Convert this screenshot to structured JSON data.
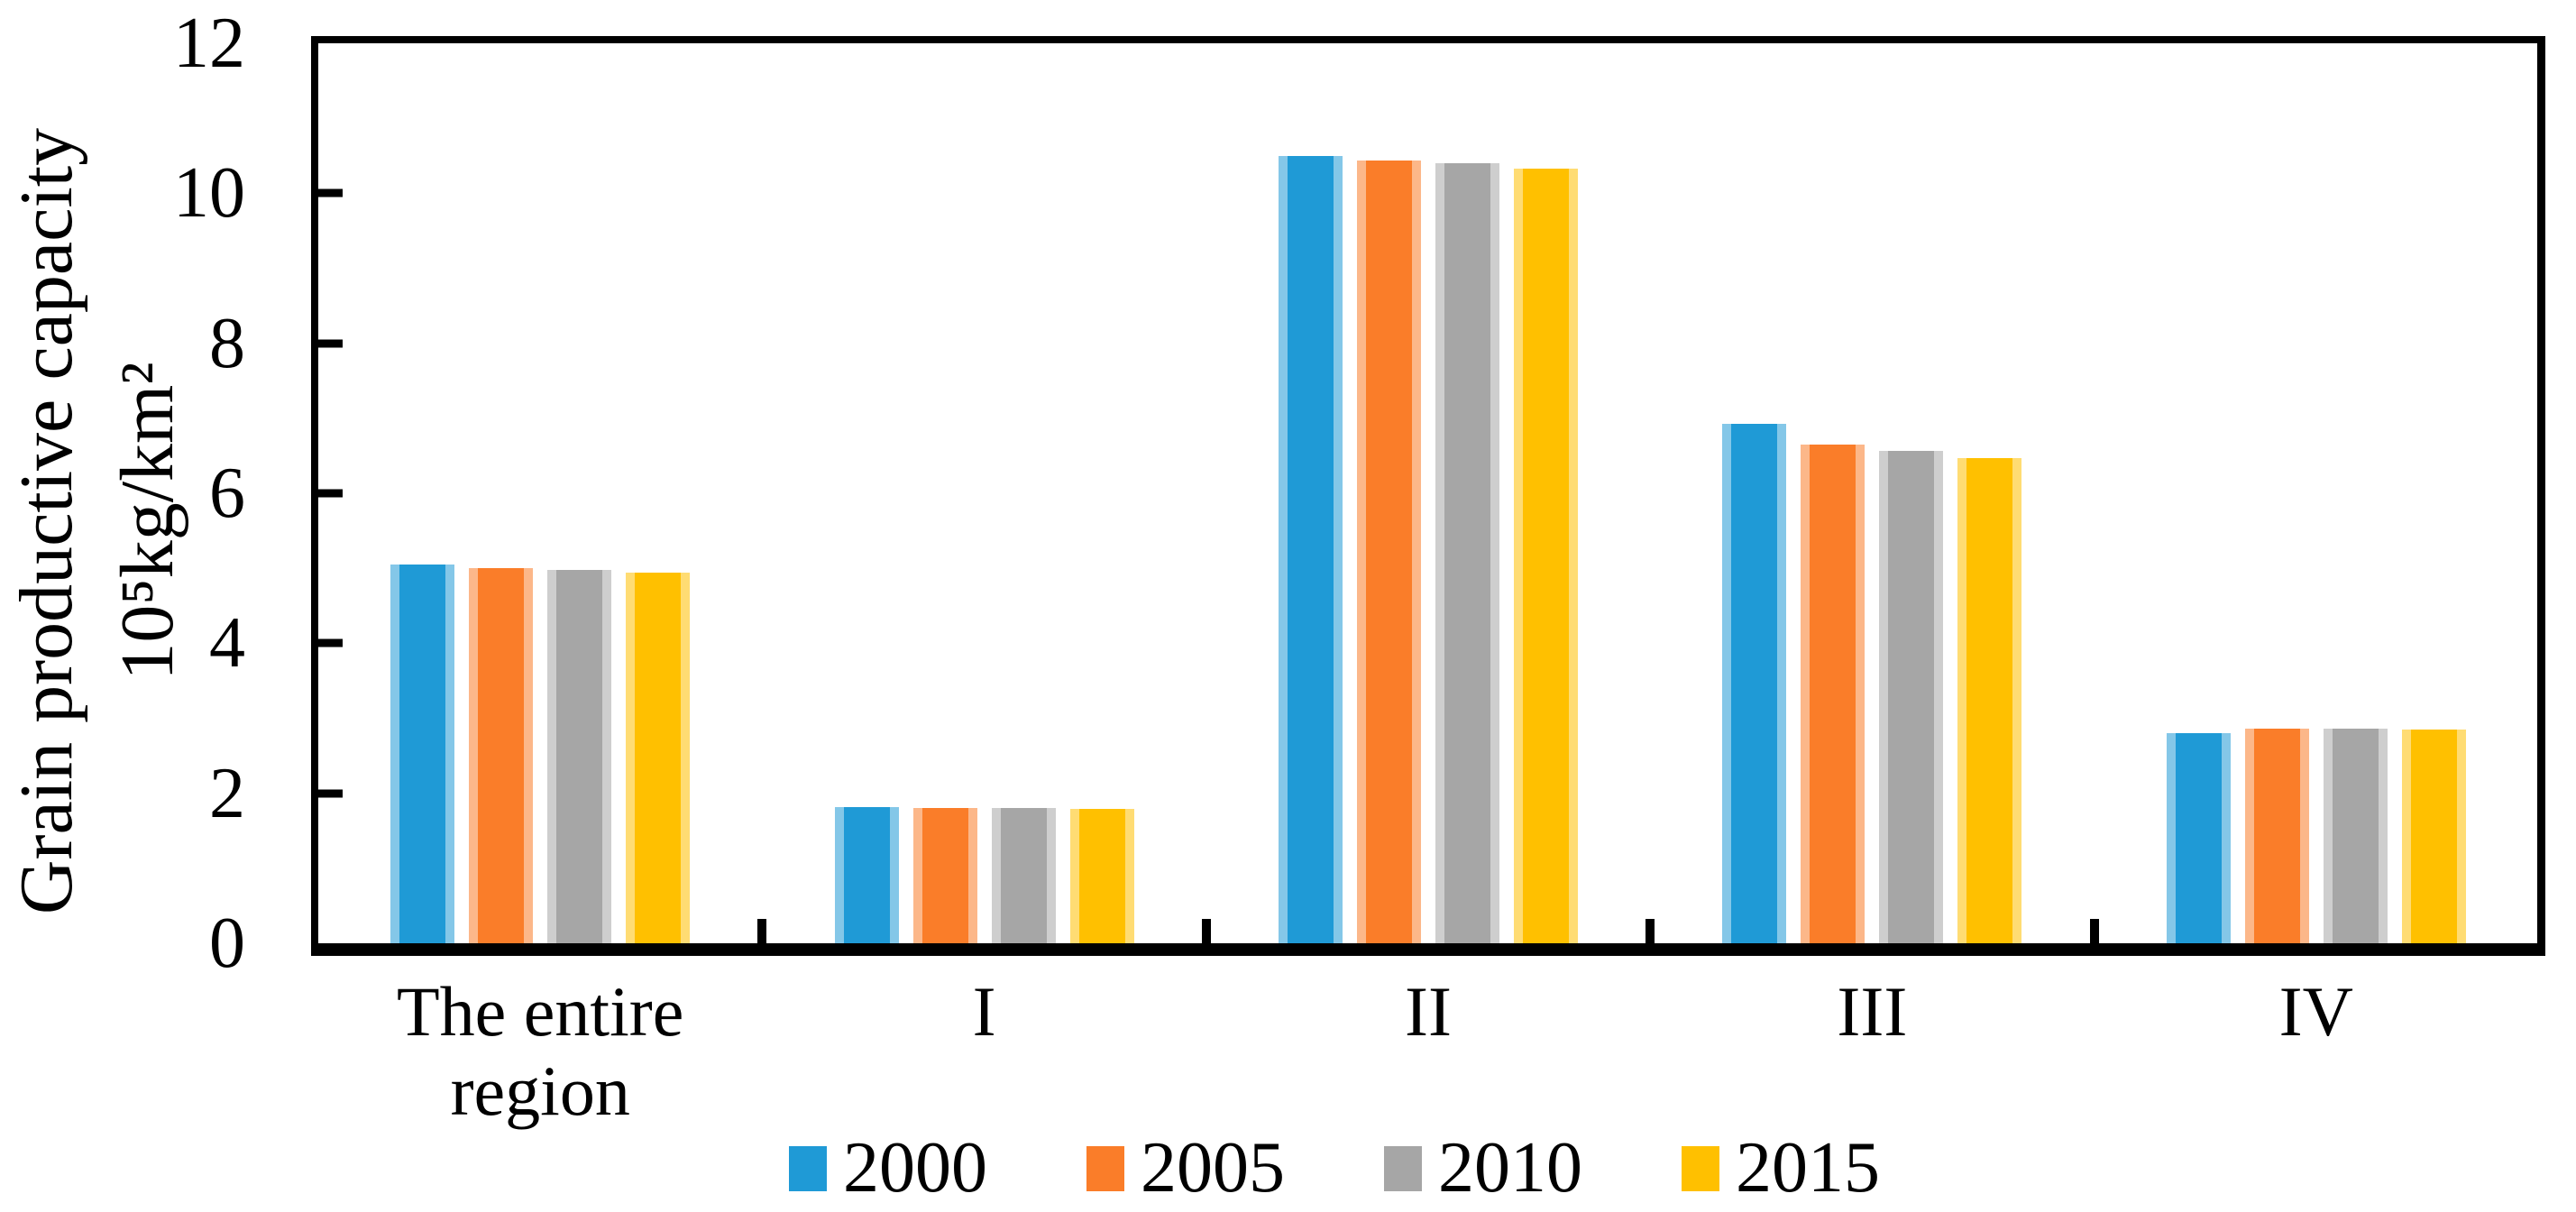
{
  "chart_data": {
    "type": "bar",
    "title": "",
    "categories": [
      "The entire\nregion",
      "I",
      "II",
      "III",
      "IV"
    ],
    "series": [
      {
        "name": "2000",
        "color": "#1F9AD6",
        "values": [
          5.05,
          1.81,
          10.5,
          6.93,
          2.8
        ]
      },
      {
        "name": "2005",
        "color": "#FA7D29",
        "values": [
          5.0,
          1.8,
          10.44,
          6.65,
          2.86
        ]
      },
      {
        "name": "2010",
        "color": "#A6A6A6",
        "values": [
          4.98,
          1.8,
          10.4,
          6.57,
          2.86
        ]
      },
      {
        "name": "2015",
        "color": "#FFC000",
        "values": [
          4.94,
          1.79,
          10.33,
          6.47,
          2.85
        ]
      }
    ],
    "ylabel_lines": [
      "Grain productive capacity",
      "10⁵kg/km²"
    ],
    "xlabel": "",
    "ylim": [
      0,
      12
    ],
    "yticks": [
      0,
      2,
      4,
      6,
      8,
      10,
      12
    ],
    "grid": false,
    "legend_position": "bottom",
    "legend": [
      "2000",
      "2005",
      "2010",
      "2015"
    ],
    "axis_color": "#000000",
    "background_color": "#FFFFFF"
  }
}
